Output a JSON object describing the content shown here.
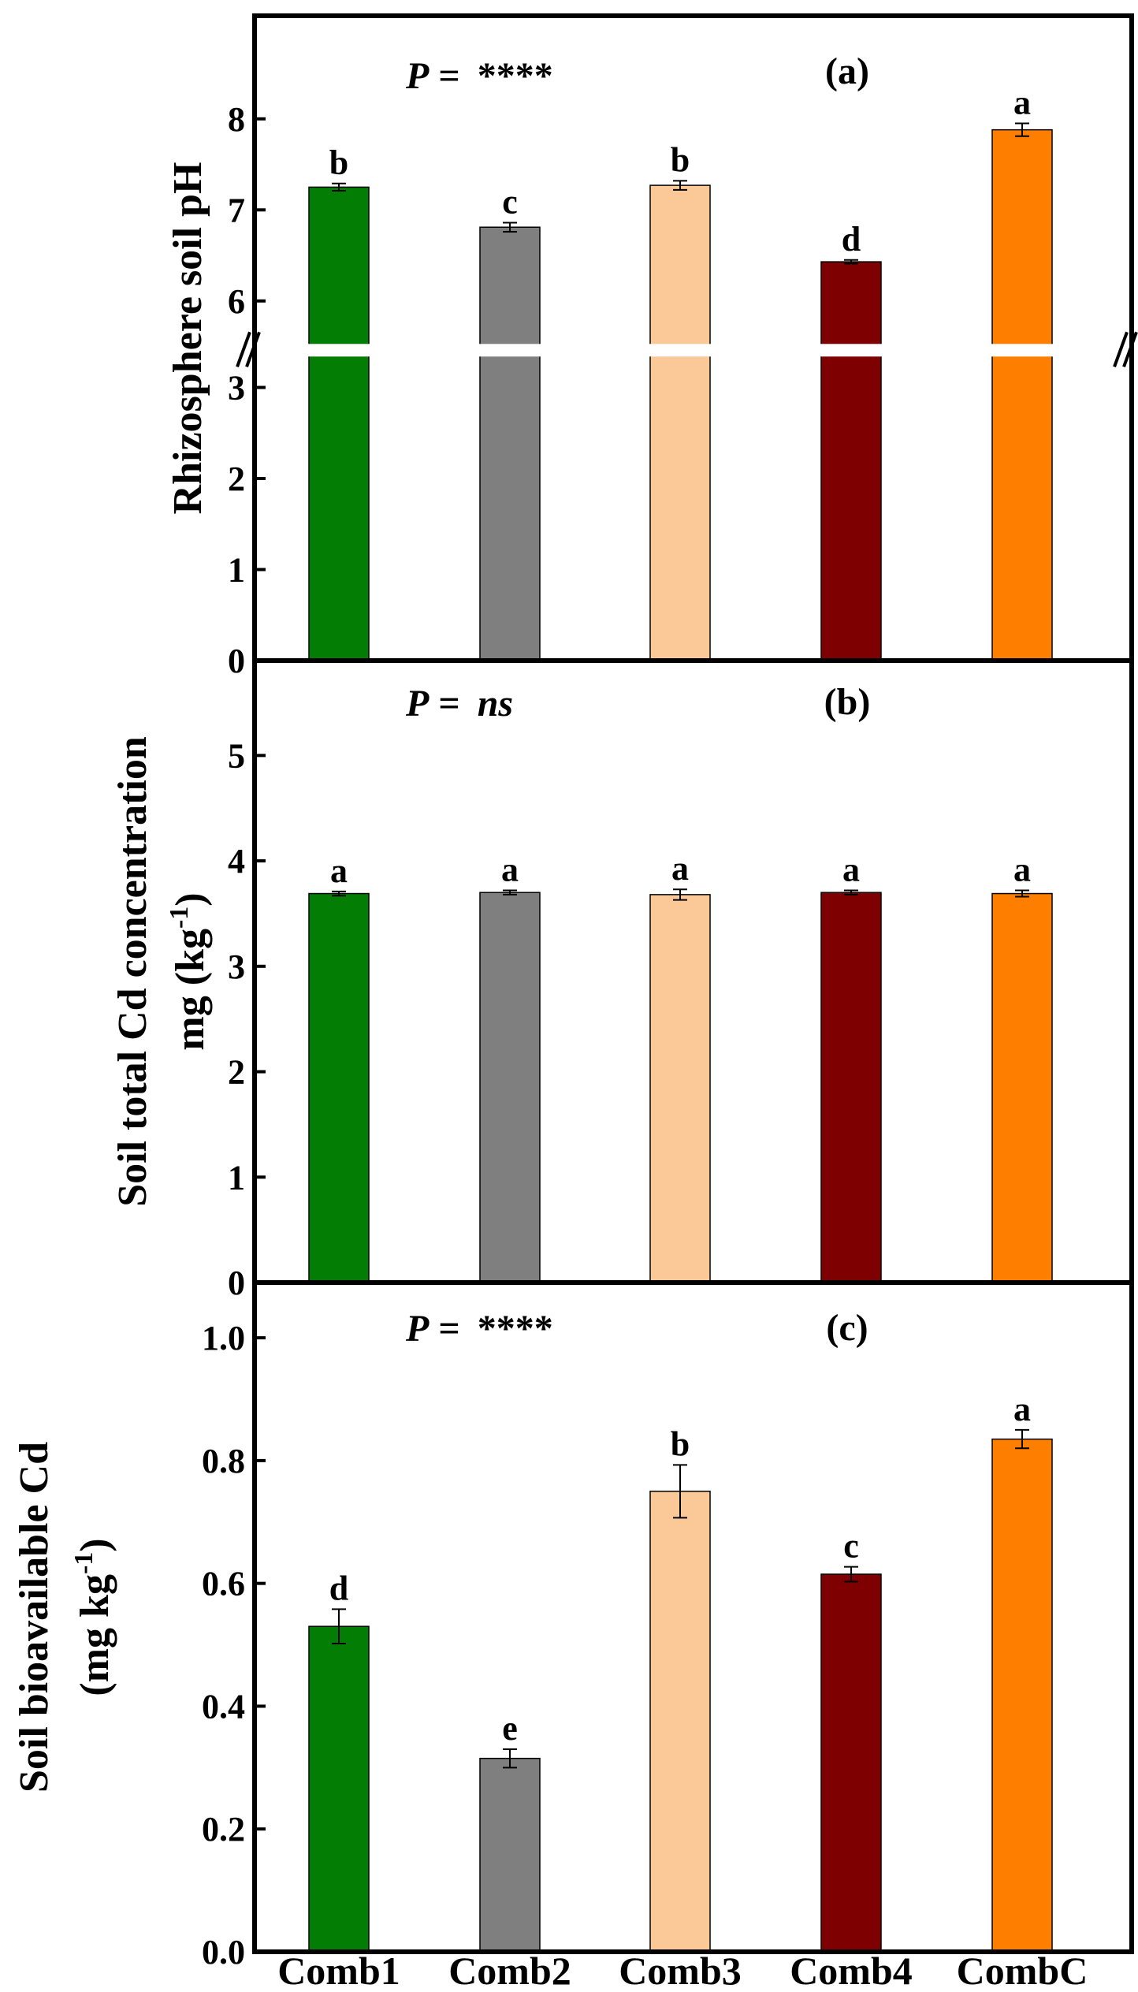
{
  "chart_data": [
    {
      "panel_label": "(a)",
      "type": "bar",
      "title": "",
      "ylabel": "Rhizosphere soil pH",
      "xlabel": "",
      "categories": [
        "Comb1",
        "Comb2",
        "Comb3",
        "Comb4",
        "CombC"
      ],
      "values": [
        7.25,
        6.81,
        7.27,
        6.43,
        7.88
      ],
      "errors": [
        0.04,
        0.05,
        0.05,
        0.02,
        0.07
      ],
      "sig_letters": [
        "b",
        "c",
        "b",
        "d",
        "a"
      ],
      "p_label": "P",
      "p_equals": " = ",
      "p_value": "****",
      "ylim": [
        0,
        8.88
      ],
      "axis_break": [
        3.4,
        5.45
      ],
      "yticks": [
        "0",
        "1",
        "2",
        "3",
        "6",
        "7",
        "8"
      ],
      "ytick_values": [
        0,
        1,
        2,
        3,
        6,
        7,
        8
      ],
      "colors": [
        "#047d05",
        "#7f7f7f",
        "#fbc897",
        "#7e0000",
        "#fe7f00"
      ]
    },
    {
      "panel_label": "(b)",
      "type": "bar",
      "title": "",
      "ylabel": "Soil total Cd concentration",
      "ylabel2_prefix": "mg (kg",
      "ylabel2_sup": "-1",
      "ylabel2_suffix": ")",
      "xlabel": "",
      "categories": [
        "Comb1",
        "Comb2",
        "Comb3",
        "Comb4",
        "CombC"
      ],
      "values": [
        3.69,
        3.7,
        3.68,
        3.7,
        3.69
      ],
      "errors": [
        0.02,
        0.02,
        0.05,
        0.02,
        0.03
      ],
      "sig_letters": [
        "a",
        "a",
        "a",
        "a",
        "a"
      ],
      "p_label": "P",
      "p_equals": " = ",
      "p_value": "ns",
      "ylim": [
        0,
        5.9
      ],
      "yticks": [
        "0",
        "1",
        "2",
        "3",
        "4",
        "5"
      ],
      "ytick_values": [
        0,
        1,
        2,
        3,
        4,
        5
      ],
      "colors": [
        "#047d05",
        "#7f7f7f",
        "#fbc897",
        "#7e0000",
        "#fe7f00"
      ]
    },
    {
      "panel_label": "(c)",
      "type": "bar",
      "title": "",
      "ylabel": "Soil bioavailable Cd",
      "ylabel2_prefix": "(mg kg",
      "ylabel2_sup": "-1",
      "ylabel2_suffix": ")",
      "xlabel": "",
      "categories": [
        "Comb1",
        "Comb2",
        "Comb3",
        "Comb4",
        "CombC"
      ],
      "values": [
        0.53,
        0.315,
        0.75,
        0.615,
        0.835
      ],
      "errors": [
        0.028,
        0.015,
        0.043,
        0.012,
        0.015
      ],
      "sig_letters": [
        "d",
        "e",
        "b",
        "c",
        "a"
      ],
      "p_label": "P",
      "p_equals": " = ",
      "p_value": "****",
      "ylim": [
        0,
        1.09
      ],
      "yticks": [
        "0.0",
        "0.2",
        "0.4",
        "0.6",
        "0.8",
        "1.0"
      ],
      "ytick_values": [
        0,
        0.2,
        0.4,
        0.6,
        0.8,
        1.0
      ],
      "colors": [
        "#047d05",
        "#7f7f7f",
        "#fbc897",
        "#7e0000",
        "#fe7f00"
      ]
    }
  ]
}
